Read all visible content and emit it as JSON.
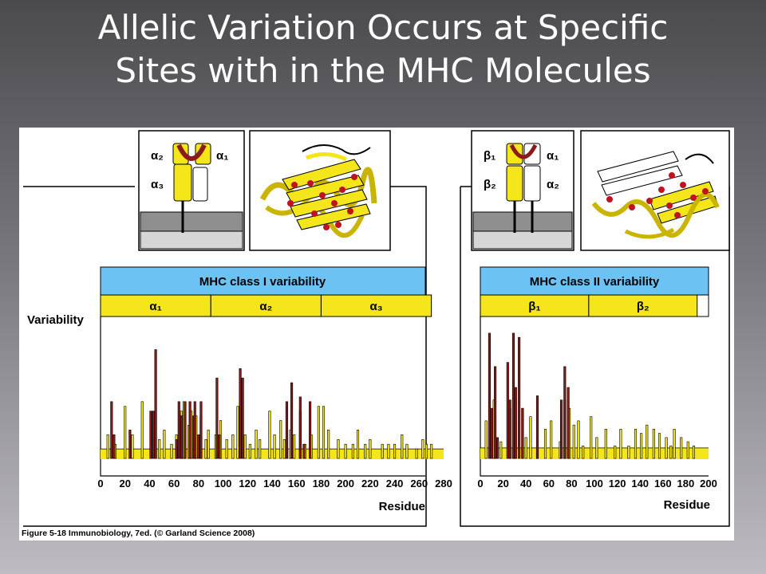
{
  "slide": {
    "title_line1": "Allelic Variation Occurs at Specific",
    "title_line2": "Sites with in the MHC Molecules"
  },
  "figure": {
    "variability_label": "Variability",
    "caption": "Figure 5-18  Immunobiology, 7ed. (© Garland Science 2008)",
    "class1_domain_labels": [
      "α₂",
      "α₁",
      "α₃"
    ],
    "class2_domain_labels": [
      "β₁",
      "α₁",
      "β₂",
      "α₂"
    ]
  },
  "chart_data": [
    {
      "type": "bar",
      "title": "MHC class I variability",
      "xlabel": "Residue",
      "ylabel": "Variability",
      "xlim": [
        0,
        280
      ],
      "xticks": [
        0,
        20,
        40,
        60,
        80,
        100,
        120,
        140,
        160,
        180,
        200,
        220,
        240,
        260,
        280
      ],
      "domains": [
        {
          "label": "α₁",
          "start": 0,
          "end": 90
        },
        {
          "label": "α₂",
          "start": 90,
          "end": 180
        },
        {
          "label": "α₃",
          "start": 180,
          "end": 270
        }
      ],
      "baseline": 2,
      "series": [
        {
          "color": "#f5e51b",
          "x": [
            6,
            12,
            20,
            26,
            34,
            48,
            52,
            58,
            62,
            66,
            68,
            72,
            74,
            78,
            82,
            86,
            88,
            94,
            98,
            103,
            108,
            112,
            118,
            122,
            127,
            130,
            138,
            142,
            147,
            150,
            155,
            158,
            163,
            167,
            172,
            178,
            182,
            186,
            194,
            200,
            206,
            210,
            216,
            220,
            230,
            235,
            240,
            246,
            250,
            258,
            263,
            266,
            270
          ],
          "values": [
            5,
            3,
            11,
            5,
            12,
            4,
            6,
            3,
            5,
            10,
            12,
            7,
            10,
            9,
            9,
            4,
            6,
            5,
            8,
            4,
            5,
            11,
            5,
            3,
            6,
            4,
            10,
            5,
            8,
            4,
            6,
            5,
            10,
            3,
            5,
            11,
            11,
            6,
            4,
            3,
            3,
            6,
            3,
            4,
            3,
            3,
            3,
            5,
            3,
            2,
            4,
            3,
            3
          ]
        },
        {
          "color": "#8b1a1a",
          "x": [
            9,
            11,
            24,
            41,
            43,
            45,
            62,
            64,
            66,
            69,
            73,
            76,
            77,
            80,
            82,
            95,
            97,
            114,
            116,
            152,
            156,
            163,
            166,
            171
          ],
          "values": [
            12,
            5,
            6,
            10,
            10,
            23,
            4,
            12,
            9,
            12,
            12,
            9,
            12,
            5,
            12,
            17,
            5,
            19,
            17,
            12,
            16,
            13,
            3,
            12
          ]
        }
      ]
    },
    {
      "type": "bar",
      "title": "MHC class II variability",
      "xlabel": "Residue",
      "ylabel": "Variability",
      "xlim": [
        0,
        200
      ],
      "xticks": [
        0,
        20,
        40,
        60,
        80,
        100,
        120,
        140,
        160,
        180,
        200
      ],
      "domains": [
        {
          "label": "β₁",
          "start": 0,
          "end": 95
        },
        {
          "label": "β₂",
          "start": 95,
          "end": 190
        }
      ],
      "baseline": 2.5,
      "series": [
        {
          "color": "#f5e51b",
          "x": [
            5,
            12,
            18,
            26,
            30,
            37,
            40,
            44,
            50,
            57,
            62,
            70,
            74,
            78,
            82,
            86,
            90,
            97,
            102,
            110,
            118,
            123,
            130,
            136,
            141,
            146,
            152,
            157,
            163,
            167,
            170,
            176,
            182,
            187
          ],
          "values": [
            9,
            14,
            4,
            12,
            9,
            12,
            5,
            10,
            3,
            7,
            9,
            4,
            14,
            12,
            8,
            9,
            3,
            10,
            5,
            7,
            3,
            7,
            3,
            7,
            6,
            8,
            7,
            6,
            5,
            3,
            7,
            5,
            4,
            3
          ]
        },
        {
          "color": "#8b1a1a",
          "x": [
            8,
            10,
            13,
            15,
            24,
            26,
            29,
            31,
            34,
            37,
            50,
            71,
            74,
            77
          ],
          "values": [
            30,
            12,
            22,
            5,
            23,
            14,
            30,
            17,
            29,
            12,
            15,
            14,
            22,
            17
          ]
        }
      ]
    }
  ]
}
